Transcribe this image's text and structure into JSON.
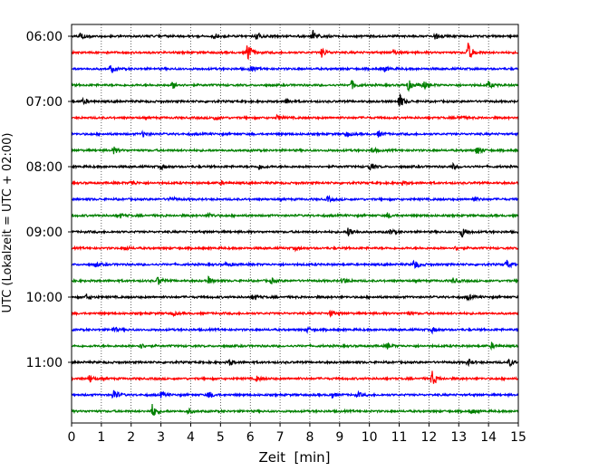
{
  "chart_data": {
    "type": "line",
    "title": "",
    "xlabel": "Zeit  [min]",
    "ylabel": "UTC (Lokalzeit = UTC + 02:00)",
    "xlim": [
      0,
      15
    ],
    "x_ticks": [
      "0",
      "1",
      "2",
      "3",
      "4",
      "5",
      "6",
      "7",
      "8",
      "9",
      "10",
      "11",
      "12",
      "13",
      "14",
      "15"
    ],
    "y_tick_labels": [
      "06:00",
      "07:00",
      "08:00",
      "09:00",
      "10:00",
      "11:00"
    ],
    "grid": "vertical dotted lines at each minute",
    "trace_interval_minutes": 15,
    "color_cycle": [
      "#000000",
      "#ff0000",
      "#0000ff",
      "#008000"
    ],
    "series": [
      {
        "start": "06:00",
        "color": "#000000",
        "bursts": [
          [
            8.1,
            7
          ],
          [
            6.2,
            5
          ],
          [
            0.3,
            4
          ],
          [
            4.8,
            3
          ],
          [
            12.2,
            3
          ]
        ]
      },
      {
        "start": "06:15",
        "color": "#ff0000",
        "bursts": [
          [
            5.9,
            12
          ],
          [
            13.3,
            12
          ],
          [
            8.4,
            5
          ],
          [
            10.8,
            3
          ]
        ]
      },
      {
        "start": "06:30",
        "color": "#0000ff",
        "bursts": [
          [
            1.3,
            4
          ],
          [
            6.0,
            3
          ],
          [
            10.5,
            3
          ]
        ]
      },
      {
        "start": "06:45",
        "color": "#008000",
        "bursts": [
          [
            11.3,
            6
          ],
          [
            11.8,
            5
          ],
          [
            9.4,
            5
          ],
          [
            14.0,
            4
          ],
          [
            3.4,
            4
          ]
        ]
      },
      {
        "start": "07:00",
        "color": "#000000",
        "bursts": [
          [
            11.0,
            9
          ],
          [
            7.2,
            3
          ],
          [
            0.4,
            3
          ]
        ]
      },
      {
        "start": "07:15",
        "color": "#ff0000",
        "bursts": [
          [
            4.8,
            3
          ],
          [
            6.9,
            3
          ],
          [
            13.0,
            3
          ]
        ]
      },
      {
        "start": "07:30",
        "color": "#0000ff",
        "bursts": [
          [
            9.2,
            3
          ],
          [
            2.4,
            3
          ],
          [
            10.3,
            3
          ]
        ]
      },
      {
        "start": "07:45",
        "color": "#008000",
        "bursts": [
          [
            13.6,
            5
          ],
          [
            1.4,
            4
          ],
          [
            10.1,
            3
          ]
        ]
      },
      {
        "start": "08:00",
        "color": "#000000",
        "bursts": [
          [
            10.0,
            4
          ],
          [
            6.3,
            3
          ],
          [
            3.0,
            3
          ],
          [
            12.8,
            3
          ]
        ]
      },
      {
        "start": "08:15",
        "color": "#ff0000",
        "bursts": [
          [
            2.0,
            3
          ],
          [
            11.1,
            2
          ],
          [
            5.0,
            2
          ]
        ]
      },
      {
        "start": "08:30",
        "color": "#0000ff",
        "bursts": [
          [
            3.3,
            3
          ],
          [
            8.6,
            3
          ],
          [
            13.5,
            3
          ]
        ]
      },
      {
        "start": "08:45",
        "color": "#008000",
        "bursts": [
          [
            1.6,
            3
          ],
          [
            4.6,
            3
          ],
          [
            10.6,
            3
          ]
        ]
      },
      {
        "start": "09:00",
        "color": "#000000",
        "bursts": [
          [
            9.3,
            6
          ],
          [
            13.1,
            6
          ],
          [
            10.7,
            3
          ]
        ]
      },
      {
        "start": "09:15",
        "color": "#ff0000",
        "bursts": [
          [
            1.8,
            2
          ],
          [
            7.5,
            2
          ],
          [
            12.9,
            2
          ]
        ]
      },
      {
        "start": "09:30",
        "color": "#0000ff",
        "bursts": [
          [
            11.5,
            6
          ],
          [
            14.6,
            5
          ],
          [
            5.2,
            3
          ],
          [
            0.8,
            3
          ]
        ]
      },
      {
        "start": "09:45",
        "color": "#008000",
        "bursts": [
          [
            2.9,
            5
          ],
          [
            4.6,
            4
          ],
          [
            9.1,
            4
          ],
          [
            6.7,
            3
          ],
          [
            12.8,
            3
          ]
        ]
      },
      {
        "start": "10:00",
        "color": "#000000",
        "bursts": [
          [
            6.1,
            4
          ],
          [
            0.5,
            3
          ],
          [
            13.3,
            3
          ]
        ]
      },
      {
        "start": "10:15",
        "color": "#ff0000",
        "bursts": [
          [
            8.7,
            3
          ],
          [
            3.4,
            2
          ],
          [
            11.3,
            2
          ]
        ]
      },
      {
        "start": "10:30",
        "color": "#0000ff",
        "bursts": [
          [
            1.4,
            3
          ],
          [
            7.9,
            3
          ],
          [
            12.1,
            3
          ]
        ]
      },
      {
        "start": "10:45",
        "color": "#008000",
        "bursts": [
          [
            2.3,
            3
          ],
          [
            10.6,
            3
          ],
          [
            14.1,
            3
          ]
        ]
      },
      {
        "start": "11:00",
        "color": "#000000",
        "bursts": [
          [
            14.7,
            4
          ],
          [
            13.3,
            4
          ],
          [
            5.3,
            3
          ]
        ]
      },
      {
        "start": "11:15",
        "color": "#ff0000",
        "bursts": [
          [
            12.1,
            9
          ],
          [
            0.6,
            4
          ],
          [
            6.2,
            3
          ]
        ]
      },
      {
        "start": "11:30",
        "color": "#0000ff",
        "bursts": [
          [
            1.4,
            7
          ],
          [
            4.6,
            4
          ],
          [
            8.7,
            4
          ],
          [
            9.6,
            3
          ],
          [
            3.0,
            3
          ]
        ]
      },
      {
        "start": "11:45",
        "color": "#008000",
        "bursts": [
          [
            2.7,
            8
          ],
          [
            3.9,
            3
          ],
          [
            13.4,
            3
          ]
        ]
      }
    ]
  }
}
